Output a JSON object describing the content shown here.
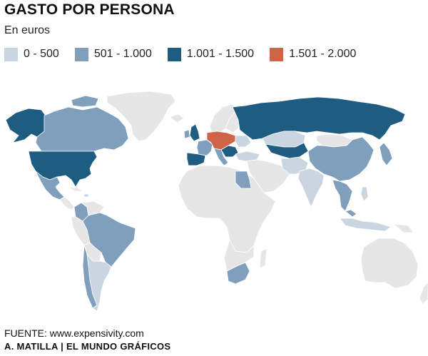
{
  "title": "GASTO POR PERSONA",
  "subtitle": "En euros",
  "legend": [
    {
      "label": "0 - 500",
      "color": "#c9d5e0"
    },
    {
      "label": "501 - 1.000",
      "color": "#7f9fbd"
    },
    {
      "label": "1.001 - 1.500",
      "color": "#1e5c82"
    },
    {
      "label": "1.501 - 2.000",
      "color": "#cf6446"
    }
  ],
  "colors": {
    "no_data": "#e6e6e6",
    "background": "#ffffff"
  },
  "source": "FUENTE: www.expensivity.com",
  "credit": "A. MATILLA | EL MUNDO GRÁFICOS"
}
